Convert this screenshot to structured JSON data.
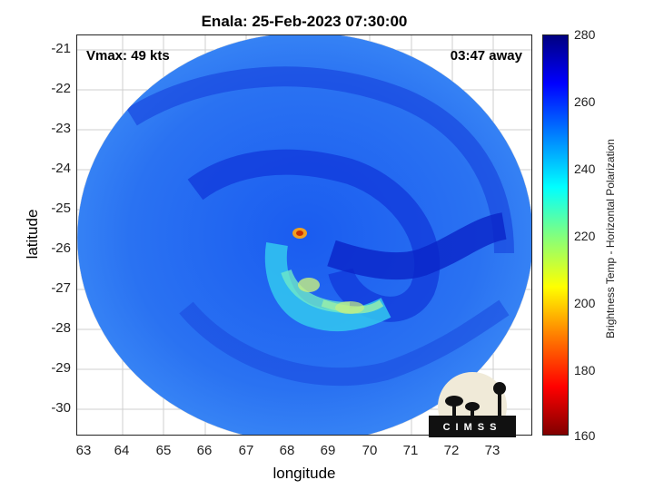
{
  "title": "Enala: 25-Feb-2023 07:30:00",
  "vmax_label": "Vmax: 49 kts",
  "away_label": "03:47 away",
  "axes": {
    "xlabel": "longitude",
    "ylabel": "latitude",
    "x_ticks": [
      "63",
      "64",
      "65",
      "66",
      "67",
      "68",
      "69",
      "70",
      "71",
      "72",
      "73"
    ],
    "y_ticks": [
      "-21",
      "-22",
      "-23",
      "-24",
      "-25",
      "-26",
      "-27",
      "-28",
      "-29",
      "-30"
    ]
  },
  "colorbar": {
    "title": "Brightness Temp - Horizontal Polarization",
    "ticks": [
      "280",
      "260",
      "240",
      "220",
      "200",
      "180",
      "160"
    ],
    "min": 160,
    "max": 280
  },
  "logo_text": "CIMSS"
}
